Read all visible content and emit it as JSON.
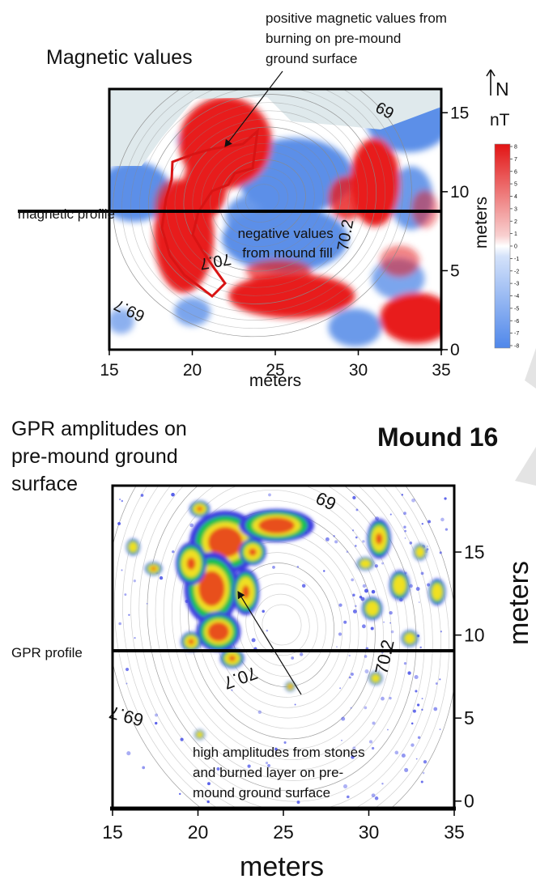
{
  "chart_data": [
    {
      "type": "heatmap",
      "title": "Magnetic values",
      "xlabel": "meters",
      "ylabel": "meters",
      "xlim": [
        15,
        35
      ],
      "ylim": [
        0,
        16.5
      ],
      "xticks": [
        15,
        20,
        25,
        30,
        35
      ],
      "yticks": [
        0,
        5,
        10,
        15
      ],
      "colorbar": {
        "unit": "nT",
        "range": [
          -8,
          8
        ],
        "ticks": [
          8,
          7,
          6,
          5,
          4,
          3,
          2,
          1,
          0,
          -1,
          -2,
          -3,
          -4,
          -5,
          -6,
          -7,
          -8
        ],
        "colors": {
          "positive": "#e81c1c",
          "zero": "#ffffff",
          "negative": "#5b8fe8"
        }
      },
      "north_arrow": "N",
      "contour_labels": [
        {
          "text": "69",
          "x": 31.6,
          "y": 14.8
        },
        {
          "text": "70.2",
          "x": 29.2,
          "y": 6.9
        },
        {
          "text": "70.7",
          "x": 21.4,
          "y": 5.2
        },
        {
          "text": "69.7",
          "x": 16.2,
          "y": 2.1
        }
      ],
      "profile": {
        "label": "magnetic profile",
        "y": 8.2
      },
      "annotations": [
        {
          "text": [
            "positive magnetic values from",
            "burning on pre-mound",
            "ground surface"
          ],
          "arrow_to": [
            21.9,
            11.7
          ]
        },
        {
          "text": [
            "negative values",
            "from mound fill"
          ],
          "x": 27.0,
          "y": 6.9
        }
      ],
      "positive_zones": [
        {
          "x": 22.0,
          "y": 13.1,
          "rx": 2.8,
          "ry": 2.9,
          "strength": 1.0
        },
        {
          "x": 20.8,
          "y": 10.5,
          "rx": 1.3,
          "ry": 2.2,
          "strength": 1.0
        },
        {
          "x": 19.5,
          "y": 7.2,
          "rx": 1.8,
          "ry": 3.6,
          "strength": 1.0
        },
        {
          "x": 18.8,
          "y": 9.0,
          "rx": 1.1,
          "ry": 1.8,
          "strength": 0.6
        },
        {
          "x": 31.0,
          "y": 10.6,
          "rx": 1.5,
          "ry": 2.8,
          "strength": 1.0
        },
        {
          "x": 29.3,
          "y": 9.6,
          "rx": 1.1,
          "ry": 1.4,
          "strength": 0.8
        },
        {
          "x": 26.0,
          "y": 3.4,
          "rx": 3.8,
          "ry": 1.4,
          "strength": 1.0
        },
        {
          "x": 25.2,
          "y": 5.0,
          "rx": 2.0,
          "ry": 0.7,
          "strength": 0.7
        },
        {
          "x": 33.5,
          "y": 2.0,
          "rx": 2.2,
          "ry": 1.6,
          "strength": 1.0
        },
        {
          "x": 32.5,
          "y": 5.6,
          "rx": 1.2,
          "ry": 1.0,
          "strength": 0.55
        },
        {
          "x": 34.0,
          "y": 8.9,
          "rx": 0.8,
          "ry": 1.2,
          "strength": 0.5
        }
      ],
      "negative_zones": [
        {
          "x": 26.2,
          "y": 11.0,
          "rx": 3.5,
          "ry": 2.4,
          "strength": 1.0
        },
        {
          "x": 25.6,
          "y": 7.0,
          "rx": 3.8,
          "ry": 2.1,
          "strength": 1.0
        },
        {
          "x": 23.6,
          "y": 8.4,
          "rx": 1.6,
          "ry": 1.4,
          "strength": 0.9
        },
        {
          "x": 16.5,
          "y": 10.0,
          "rx": 2.2,
          "ry": 1.9,
          "strength": 1.0
        },
        {
          "x": 33.0,
          "y": 14.4,
          "rx": 2.5,
          "ry": 1.9,
          "strength": 1.0
        },
        {
          "x": 33.2,
          "y": 9.6,
          "rx": 1.3,
          "ry": 2.0,
          "strength": 0.9
        },
        {
          "x": 32.4,
          "y": 4.5,
          "rx": 1.6,
          "ry": 1.3,
          "strength": 0.8
        },
        {
          "x": 29.8,
          "y": 1.4,
          "rx": 1.6,
          "ry": 1.2,
          "strength": 0.9
        },
        {
          "x": 20.0,
          "y": 2.4,
          "rx": 1.1,
          "ry": 0.9,
          "strength": 0.8
        },
        {
          "x": 15.7,
          "y": 1.8,
          "rx": 0.8,
          "ry": 0.8,
          "strength": 0.7
        },
        {
          "x": 20.6,
          "y": 13.3,
          "rx": 1.6,
          "ry": 0.9,
          "strength": 0.5
        }
      ]
    },
    {
      "type": "heatmap",
      "title": [
        "GPR amplitudes on",
        "pre-mound ground",
        "surface"
      ],
      "site_label": "Mound 16",
      "xlabel": "meters",
      "ylabel": "meters",
      "xlim": [
        15,
        35
      ],
      "ylim": [
        -0.5,
        19
      ],
      "xticks": [
        15,
        20,
        25,
        30,
        35
      ],
      "yticks": [
        0,
        5,
        10,
        15
      ],
      "contour_labels": [
        {
          "text": "69",
          "x": 27.5,
          "y": 17.7
        },
        {
          "text": "70.2",
          "x": 30.9,
          "y": 8.3
        },
        {
          "text": "70.7",
          "x": 22.5,
          "y": 7.0
        },
        {
          "text": "69.7",
          "x": 15.8,
          "y": 4.7
        }
      ],
      "profile": {
        "label": "GPR profile",
        "y": 9.2
      },
      "annotations": [
        {
          "text": [
            "high amplitudes from stones",
            "and burned layer on pre-",
            "mound ground surface"
          ],
          "x": 20.2,
          "y": 3.4,
          "arrow_from": [
            26.0,
            6.3
          ],
          "arrow_to": [
            23.0,
            12.3
          ]
        }
      ],
      "colors": {
        "low": "#3a3ae0",
        "mid": "#18c24a",
        "high": "#f0e020",
        "peak": "#e8501c"
      },
      "amplitude_zones": [
        {
          "x": 21.6,
          "y": 15.6,
          "rx": 2.1,
          "ry": 1.9,
          "amp": 1.0
        },
        {
          "x": 20.8,
          "y": 12.8,
          "rx": 1.6,
          "ry": 2.2,
          "amp": 1.0
        },
        {
          "x": 21.2,
          "y": 10.2,
          "rx": 1.3,
          "ry": 1.2,
          "amp": 1.0
        },
        {
          "x": 19.6,
          "y": 14.3,
          "rx": 0.9,
          "ry": 1.3,
          "amp": 0.8
        },
        {
          "x": 24.6,
          "y": 16.6,
          "rx": 2.2,
          "ry": 1.0,
          "amp": 0.95
        },
        {
          "x": 23.2,
          "y": 15.0,
          "rx": 0.8,
          "ry": 0.8,
          "amp": 0.7
        },
        {
          "x": 22.8,
          "y": 12.6,
          "rx": 0.8,
          "ry": 1.4,
          "amp": 0.65
        },
        {
          "x": 22.0,
          "y": 8.6,
          "rx": 0.7,
          "ry": 0.6,
          "amp": 0.7
        },
        {
          "x": 20.1,
          "y": 17.6,
          "rx": 0.6,
          "ry": 0.5,
          "amp": 0.6
        },
        {
          "x": 17.4,
          "y": 14.0,
          "rx": 0.5,
          "ry": 0.4,
          "amp": 0.6
        },
        {
          "x": 16.2,
          "y": 15.3,
          "rx": 0.4,
          "ry": 0.5,
          "amp": 0.55
        },
        {
          "x": 19.6,
          "y": 9.6,
          "rx": 0.6,
          "ry": 0.6,
          "amp": 0.65
        },
        {
          "x": 30.6,
          "y": 15.8,
          "rx": 0.7,
          "ry": 1.2,
          "amp": 0.65
        },
        {
          "x": 31.8,
          "y": 13.0,
          "rx": 0.6,
          "ry": 0.9,
          "amp": 0.5
        },
        {
          "x": 30.2,
          "y": 11.6,
          "rx": 0.6,
          "ry": 0.7,
          "amp": 0.45
        },
        {
          "x": 32.4,
          "y": 9.8,
          "rx": 0.5,
          "ry": 0.5,
          "amp": 0.5
        },
        {
          "x": 30.4,
          "y": 7.4,
          "rx": 0.4,
          "ry": 0.4,
          "amp": 0.55
        },
        {
          "x": 34.0,
          "y": 12.6,
          "rx": 0.5,
          "ry": 0.8,
          "amp": 0.45
        },
        {
          "x": 33.0,
          "y": 15.0,
          "rx": 0.4,
          "ry": 0.5,
          "amp": 0.45
        },
        {
          "x": 29.8,
          "y": 14.3,
          "rx": 0.5,
          "ry": 0.4,
          "amp": 0.45
        },
        {
          "x": 25.4,
          "y": 6.9,
          "rx": 0.3,
          "ry": 0.3,
          "amp": 0.6
        },
        {
          "x": 20.1,
          "y": 4.0,
          "rx": 0.3,
          "ry": 0.3,
          "amp": 0.5
        }
      ]
    }
  ]
}
